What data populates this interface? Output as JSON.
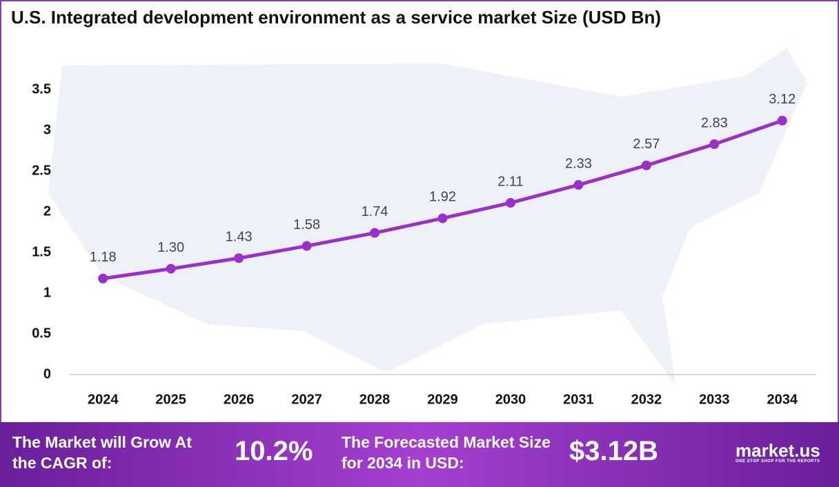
{
  "chart_data": {
    "type": "line",
    "title": "U.S. Integrated development environment as a service market Size (USD Bn)",
    "categories": [
      "2024",
      "2025",
      "2026",
      "2027",
      "2028",
      "2029",
      "2030",
      "2031",
      "2032",
      "2033",
      "2034"
    ],
    "values": [
      1.18,
      1.3,
      1.43,
      1.58,
      1.74,
      1.92,
      2.11,
      2.33,
      2.57,
      2.83,
      3.12
    ],
    "value_labels": [
      "1.18",
      "1.30",
      "1.43",
      "1.58",
      "1.74",
      "1.92",
      "2.11",
      "2.33",
      "2.57",
      "2.83",
      "3.12"
    ],
    "color": "#9b2fc9",
    "ylim": [
      0,
      3.5
    ],
    "yticks": [
      0,
      0.5,
      1,
      1.5,
      2,
      2.5,
      3,
      3.5
    ],
    "grid": false
  },
  "footer": {
    "cagr_text": "The Market will Grow At the CAGR of:",
    "cagr_value": "10.2%",
    "forecast_text": "The Forecasted Market Size for 2034 in USD:",
    "forecast_value": "$3.12B",
    "brand": "market.us",
    "tagline": "ONE STOP SHOP FOR THE REPORTS"
  }
}
